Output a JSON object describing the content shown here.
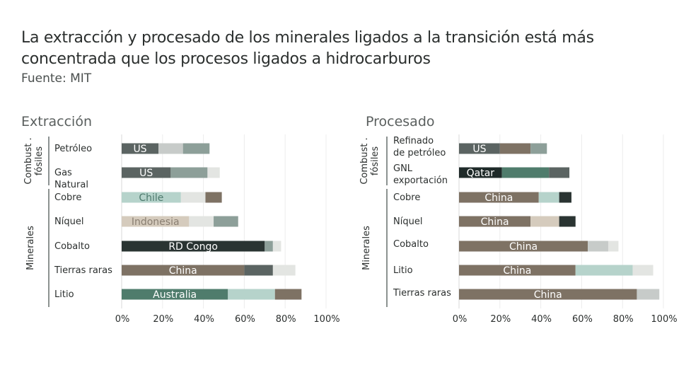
{
  "header": {
    "title": "La extracción y procesado de los minerales ligados a la transición está más concentrada que los procesos ligados a hidrocarburos",
    "source": "Fuente: MIT"
  },
  "chart_data": [
    {
      "type": "bar",
      "stacked": true,
      "orientation": "horizontal",
      "title": "Extracción",
      "xlim": [
        0,
        100
      ],
      "x_ticks": [
        "0%",
        "20%",
        "40%",
        "60%",
        "80%",
        "100%"
      ],
      "groups": [
        {
          "label": "Combust . fósiles",
          "categories": [
            "Petróleo",
            "Gas Natural"
          ]
        },
        {
          "label": "Minerales",
          "categories": [
            "Cobre",
            "Níquel",
            "Cobalto",
            "Tierras raras",
            "Litio"
          ]
        }
      ],
      "rows": [
        {
          "category": "Petróleo",
          "segments": [
            {
              "value": 18,
              "color": "#5b6462",
              "label": "US",
              "label_color": "#ffffff"
            },
            {
              "value": 12,
              "color": "#c7cbc9"
            },
            {
              "value": 13,
              "color": "#8d9f99"
            }
          ]
        },
        {
          "category": "Gas Natural",
          "segments": [
            {
              "value": 24,
              "color": "#5b6462",
              "label": "US",
              "label_color": "#ffffff"
            },
            {
              "value": 18,
              "color": "#8d9f99"
            },
            {
              "value": 6,
              "color": "#e3e5e2"
            }
          ]
        },
        {
          "category": "Cobre",
          "segments": [
            {
              "value": 29,
              "color": "#b6d3cb",
              "label": "Chile",
              "label_color": "#4d7a6d"
            },
            {
              "value": 12,
              "color": "#e3e5e2"
            },
            {
              "value": 8,
              "color": "#7e7264"
            }
          ]
        },
        {
          "category": "Níquel",
          "segments": [
            {
              "value": 33,
              "color": "#d5cbbd",
              "label": "Indonesia",
              "label_color": "#8a7f72"
            },
            {
              "value": 12,
              "color": "#e3e5e2"
            },
            {
              "value": 12,
              "color": "#8d9f99"
            }
          ]
        },
        {
          "category": "Cobalto",
          "segments": [
            {
              "value": 70,
              "color": "#2a3432",
              "label": "RD Congo",
              "label_color": "#ffffff"
            },
            {
              "value": 4,
              "color": "#8d9f99"
            },
            {
              "value": 4,
              "color": "#e3e5e2"
            }
          ]
        },
        {
          "category": "Tierras raras",
          "segments": [
            {
              "value": 60,
              "color": "#7e7264",
              "label": "China",
              "label_color": "#ffffff"
            },
            {
              "value": 14,
              "color": "#5b6462"
            },
            {
              "value": 11,
              "color": "#e3e5e2"
            }
          ]
        },
        {
          "category": "Litio",
          "segments": [
            {
              "value": 52,
              "color": "#4f7c6c",
              "label": "Australia",
              "label_color": "#ffffff"
            },
            {
              "value": 23,
              "color": "#b6d3cb"
            },
            {
              "value": 13,
              "color": "#7e7264"
            }
          ]
        }
      ]
    },
    {
      "type": "bar",
      "stacked": true,
      "orientation": "horizontal",
      "title": "Procesado",
      "xlim": [
        0,
        100
      ],
      "x_ticks": [
        "0%",
        "20%",
        "40%",
        "60%",
        "80%",
        "100%"
      ],
      "groups": [
        {
          "label": "Combust . fósiles",
          "categories": [
            "Refinado de petróleo",
            "GNL exportación"
          ]
        },
        {
          "label": "Minerales",
          "categories": [
            "Cobre",
            "Níquel",
            "Cobalto",
            "Litio",
            "Tierras raras"
          ]
        }
      ],
      "rows": [
        {
          "category": "Refinado de petróleo",
          "segments": [
            {
              "value": 20,
              "color": "#5b6462",
              "label": "US",
              "label_color": "#ffffff"
            },
            {
              "value": 15,
              "color": "#7e7264"
            },
            {
              "value": 8,
              "color": "#8d9f99"
            }
          ]
        },
        {
          "category": "GNL exportación",
          "segments": [
            {
              "value": 21,
              "color": "#1f2a29",
              "label": "Qatar",
              "label_color": "#ffffff"
            },
            {
              "value": 23,
              "color": "#4f7c6c"
            },
            {
              "value": 10,
              "color": "#5b6462"
            }
          ]
        },
        {
          "category": "Cobre",
          "segments": [
            {
              "value": 39,
              "color": "#7e7264",
              "label": "China",
              "label_color": "#ffffff"
            },
            {
              "value": 10,
              "color": "#b6d3cb"
            },
            {
              "value": 6,
              "color": "#2a3432"
            }
          ]
        },
        {
          "category": "Níquel",
          "segments": [
            {
              "value": 35,
              "color": "#7e7264",
              "label": "China",
              "label_color": "#ffffff"
            },
            {
              "value": 14,
              "color": "#d5cbbd"
            },
            {
              "value": 8,
              "color": "#2a3432"
            }
          ]
        },
        {
          "category": "Cobalto",
          "segments": [
            {
              "value": 63,
              "color": "#7e7264",
              "label": "China",
              "label_color": "#ffffff"
            },
            {
              "value": 10,
              "color": "#c7cbc9"
            },
            {
              "value": 5,
              "color": "#e3e5e2"
            }
          ]
        },
        {
          "category": "Litio",
          "segments": [
            {
              "value": 57,
              "color": "#7e7264",
              "label": "China",
              "label_color": "#ffffff"
            },
            {
              "value": 28,
              "color": "#b6d3cb"
            },
            {
              "value": 10,
              "color": "#e3e5e2"
            }
          ]
        },
        {
          "category": "Tierras raras",
          "segments": [
            {
              "value": 87,
              "color": "#7e7264",
              "label": "China",
              "label_color": "#ffffff"
            },
            {
              "value": 11,
              "color": "#c7cbc9"
            }
          ]
        }
      ]
    }
  ]
}
